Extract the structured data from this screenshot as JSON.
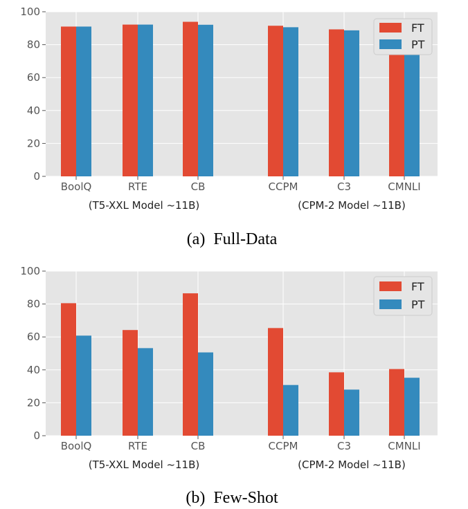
{
  "chart_data": [
    {
      "type": "bar",
      "caption": "(a)  Full-Data",
      "categories": [
        "BoolQ",
        "RTE",
        "CB",
        "CCPM",
        "C3",
        "CMNLI"
      ],
      "category_groups": [
        "(T5-XXL Model ~11B)",
        "(CPM-2 Model ~11B)"
      ],
      "series": [
        {
          "name": "FT",
          "values": [
            91.0,
            92.2,
            93.9,
            91.5,
            89.3,
            84.5
          ]
        },
        {
          "name": "PT",
          "values": [
            91.0,
            92.2,
            92.1,
            90.6,
            88.7,
            84.0
          ]
        }
      ],
      "ylim": [
        0,
        100
      ],
      "yticks": [
        0,
        20,
        40,
        60,
        80,
        100
      ],
      "grid": true,
      "legend_position": "top-right"
    },
    {
      "type": "bar",
      "caption": "(b)  Few-Shot",
      "categories": [
        "BoolQ",
        "RTE",
        "CB",
        "CCPM",
        "C3",
        "CMNLI"
      ],
      "category_groups": [
        "(T5-XXL Model ~11B)",
        "(CPM-2 Model ~11B)"
      ],
      "series": [
        {
          "name": "FT",
          "values": [
            80.5,
            64.2,
            86.5,
            65.4,
            38.5,
            40.5
          ]
        },
        {
          "name": "PT",
          "values": [
            60.8,
            53.2,
            50.6,
            30.8,
            28.0,
            35.2
          ]
        }
      ],
      "ylim": [
        0,
        100
      ],
      "yticks": [
        0,
        20,
        40,
        60,
        80,
        100
      ],
      "grid": true,
      "legend_position": "top-right"
    }
  ],
  "colors": {
    "FT": "#e24a33",
    "PT": "#348abd",
    "panel_bg": "#e5e5e5",
    "grid": "#ffffff"
  }
}
